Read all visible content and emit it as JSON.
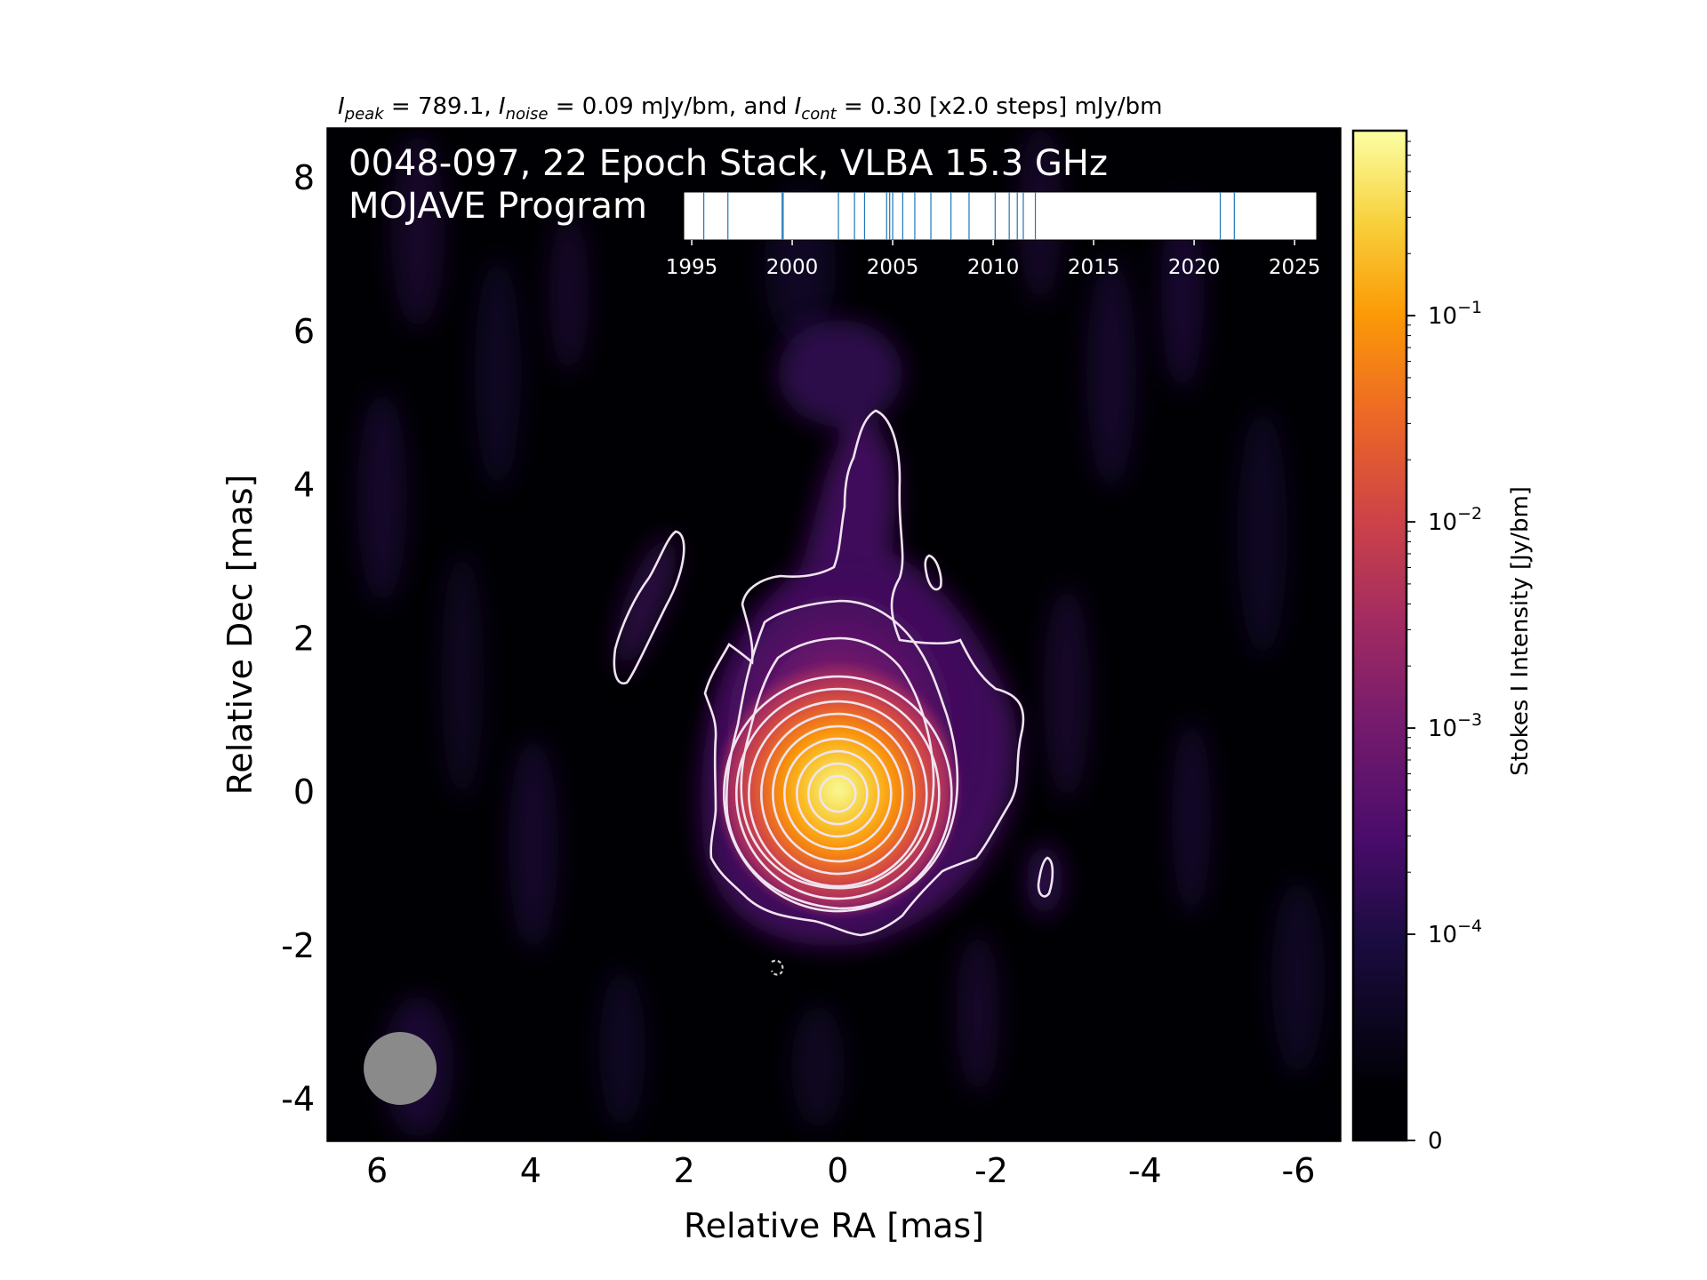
{
  "chart_data": {
    "type": "heatmap",
    "subtitle": {
      "peak_var": "I",
      "peak_sub": "peak",
      "peak_value": " = 789.1, ",
      "noise_var": "I",
      "noise_sub": "noise",
      "noise_value": " = 0.09 mJy/bm, and ",
      "cont_var": "I",
      "cont_sub": "cont",
      "cont_value": " = 0.30 [x2.0 steps] mJy/bm"
    },
    "title_line1": "0048-097, 22 Epoch Stack, VLBA 15.3 GHz",
    "title_line2": "MOJAVE Program",
    "xlabel": "Relative RA [mas]",
    "ylabel": "Relative Dec [mas]",
    "xlim": [
      6.65,
      -6.55
    ],
    "ylim": [
      -4.55,
      8.65
    ],
    "x_ticks": [
      6,
      4,
      2,
      0,
      -2,
      -4,
      -6
    ],
    "x_tick_labels": [
      "6",
      "4",
      "2",
      "0",
      "-2",
      "-4",
      "-6"
    ],
    "y_ticks": [
      -4,
      -2,
      0,
      2,
      4,
      6,
      8
    ],
    "y_tick_labels": [
      "-4",
      "-2",
      "0",
      "2",
      "4",
      "6",
      "8"
    ],
    "colorbar": {
      "label": "Stokes I Intensity [Jy/bm]",
      "scale": "symlog",
      "colormap": "inferno",
      "ticks": [
        0,
        0.0001,
        0.001,
        0.01,
        0.1
      ],
      "tick_base": [
        "0",
        "10",
        "10",
        "10",
        "10"
      ],
      "tick_exp": [
        "",
        "−4",
        "−3",
        "−2",
        "−1"
      ],
      "vmax": 0.789
    },
    "beam": {
      "x": 5.7,
      "y": -3.6,
      "diameter_mas": 0.95,
      "color": "#8a8a8a"
    },
    "peak_jy": 0.7891,
    "contour_base_mjy": 0.3,
    "contour_step": 2.0,
    "contour_color": "#f0e4f0",
    "epoch_timeline": {
      "xlim": [
        1994.6,
        2026.1
      ],
      "tick_values": [
        1995,
        2000,
        2005,
        2010,
        2015,
        2020,
        2025
      ],
      "tick_labels": [
        "1995",
        "2000",
        "2005",
        "2010",
        "2015",
        "2020",
        "2025"
      ],
      "epochs": [
        1995.6,
        1996.8,
        1999.5,
        1999.55,
        2002.3,
        2003.1,
        2003.6,
        2004.7,
        2004.85,
        2005.0,
        2005.5,
        2006.1,
        2006.9,
        2007.9,
        2008.8,
        2010.1,
        2010.8,
        2011.2,
        2011.5,
        2012.1,
        2021.3,
        2022.0
      ],
      "line_color": "#1f77b4"
    }
  }
}
